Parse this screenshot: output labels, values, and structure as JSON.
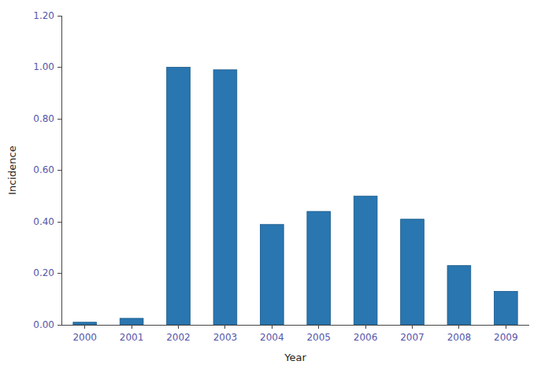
{
  "chart_data": {
    "type": "bar",
    "categories": [
      "2000",
      "2001",
      "2002",
      "2003",
      "2004",
      "2005",
      "2006",
      "2007",
      "2008",
      "2009"
    ],
    "values": [
      0.01,
      0.025,
      1.0,
      0.99,
      0.39,
      0.44,
      0.5,
      0.41,
      0.23,
      0.13
    ],
    "color": "#2976b0",
    "x_label": "Year",
    "y_label": "Incidence",
    "ylim": [
      0,
      1.2
    ],
    "yticks": [
      {
        "value": 0.0,
        "label": "0.00"
      },
      {
        "value": 0.2,
        "label": "0.20"
      },
      {
        "value": 0.4,
        "label": "0.40"
      },
      {
        "value": 0.6,
        "label": "0.60"
      },
      {
        "value": 0.8,
        "label": "0.80"
      },
      {
        "value": 1.0,
        "label": "1.00"
      },
      {
        "value": 1.2,
        "label": "1.20"
      }
    ],
    "grid": false
  }
}
